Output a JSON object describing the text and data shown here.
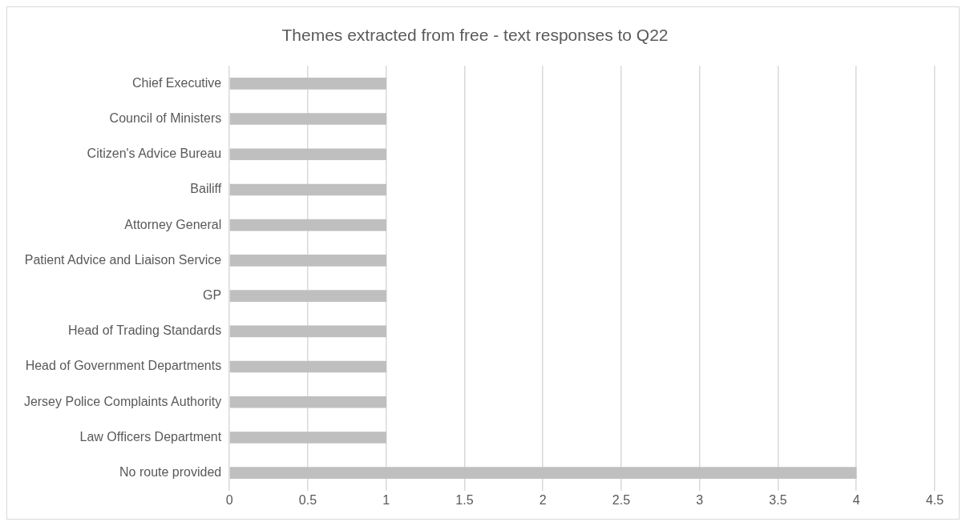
{
  "chart_data": {
    "type": "bar",
    "orientation": "horizontal",
    "title": "Themes extracted from free - text responses to Q22",
    "categories": [
      "Chief Executive",
      "Council of Ministers",
      "Citizen's Advice Bureau",
      "Bailiff",
      "Attorney General",
      "Patient Advice and Liaison Service",
      "GP",
      "Head of Trading Standards",
      "Head of Government Departments",
      "Jersey Police Complaints Authority",
      "Law Officers Department",
      "No route provided"
    ],
    "values": [
      1,
      1,
      1,
      1,
      1,
      1,
      1,
      1,
      1,
      1,
      1,
      4
    ],
    "color": "#bfbfbf",
    "xlim": [
      0,
      4.5
    ],
    "xticks": [
      0,
      0.5,
      1,
      1.5,
      2,
      2.5,
      3,
      3.5,
      4,
      4.5
    ],
    "grid": "x",
    "legend": false
  }
}
